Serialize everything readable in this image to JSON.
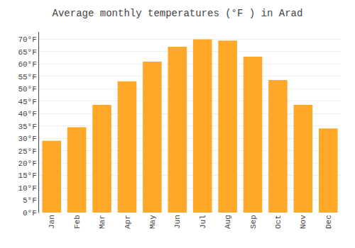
{
  "chart_data": {
    "type": "bar",
    "title": "Average monthly temperatures (°F ) in Arad",
    "categories": [
      "Jan",
      "Feb",
      "Mar",
      "Apr",
      "May",
      "Jun",
      "Jul",
      "Aug",
      "Sep",
      "Oct",
      "Nov",
      "Dec"
    ],
    "values": [
      29,
      34.5,
      43.5,
      53,
      61,
      67,
      70,
      69.5,
      63,
      53.5,
      43.5,
      34
    ],
    "color": "#FFA726",
    "ylim": [
      0,
      73
    ],
    "yticks": [
      {
        "value": 0,
        "label": "0°F"
      },
      {
        "value": 5,
        "label": "5°F"
      },
      {
        "value": 10,
        "label": "10°F"
      },
      {
        "value": 15,
        "label": "15°F"
      },
      {
        "value": 20,
        "label": "20°F"
      },
      {
        "value": 25,
        "label": "25°F"
      },
      {
        "value": 30,
        "label": "30°F"
      },
      {
        "value": 35,
        "label": "35°F"
      },
      {
        "value": 40,
        "label": "40°F"
      },
      {
        "value": 45,
        "label": "45°F"
      },
      {
        "value": 50,
        "label": "50°F"
      },
      {
        "value": 55,
        "label": "55°F"
      },
      {
        "value": 60,
        "label": "60°F"
      },
      {
        "value": 65,
        "label": "65°F"
      },
      {
        "value": 70,
        "label": "70°F"
      }
    ],
    "grid": true
  }
}
